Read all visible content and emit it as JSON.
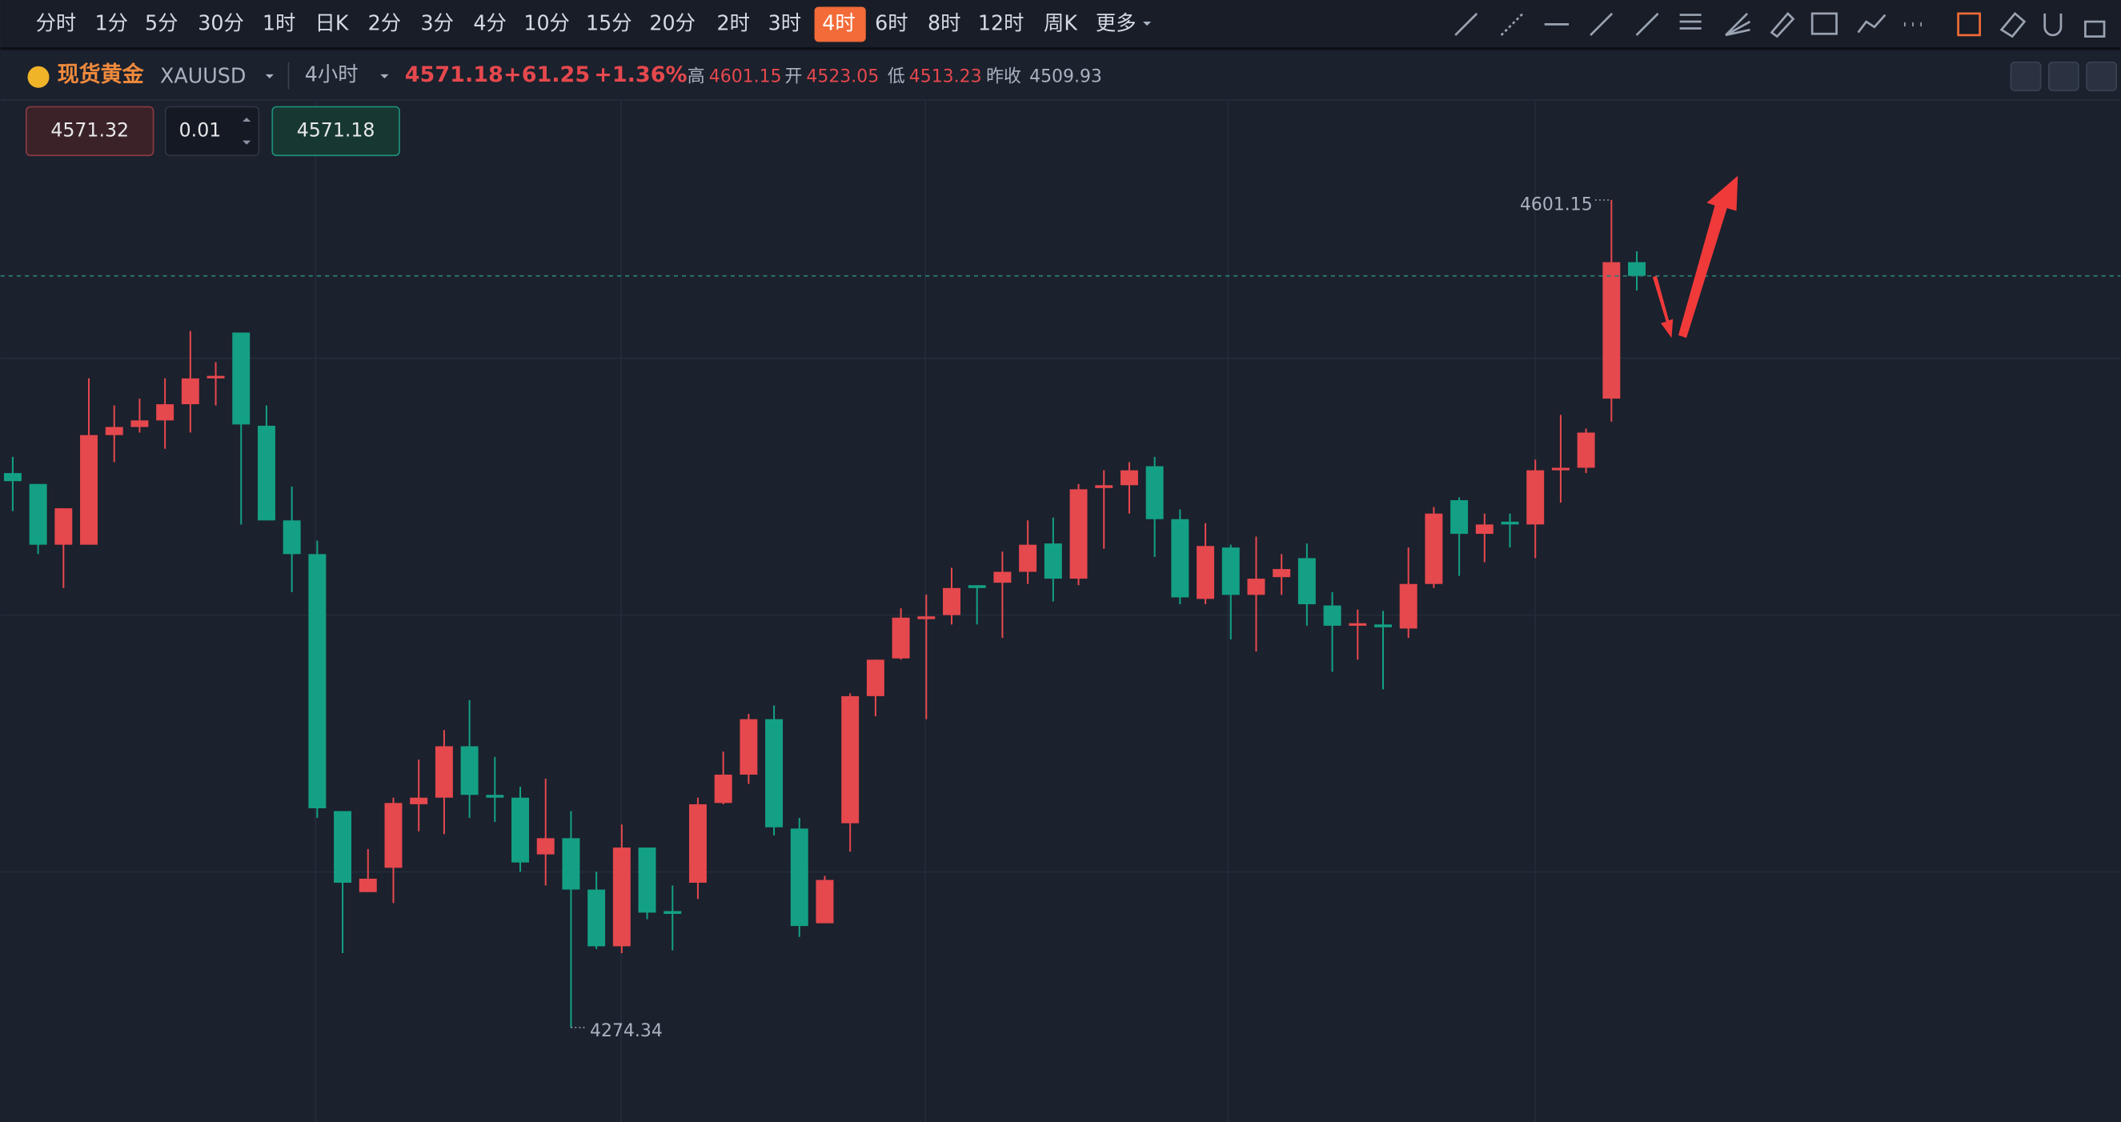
{
  "toolbar": {
    "intervals": [
      "分时",
      "1分",
      "5分",
      "30分",
      "1时",
      "日K",
      "2分",
      "3分",
      "4分",
      "10分",
      "15分",
      "20分",
      "2时",
      "3时",
      "4时",
      "6时",
      "8时",
      "12时",
      "周K",
      "更多"
    ],
    "active_interval": 14
  },
  "symbol": {
    "name": "现货黄金",
    "code": "XAUUSD",
    "period": "4小时",
    "price": "4571.18",
    "change": "+61.25",
    "change_pct": "+1.36%",
    "high_label": "高",
    "high": "4601.15",
    "open_label": "开",
    "open": "4523.05",
    "low_label": "低",
    "low": "4513.23",
    "prev_close_label": "昨收",
    "prev_close": "4509.93"
  },
  "order": {
    "sell": "4571.32",
    "lots": "0.01",
    "buy": "4571.18"
  },
  "chart_data": {
    "type": "candlestick",
    "up_color": "#e5484d",
    "down_color": "#14a085",
    "ylim": [
      4237.0,
      4640.1
    ],
    "last_price_line": true,
    "open": [
      4493.3,
      4489.0,
      4465.0,
      4465.0,
      4508.3,
      4511.5,
      4514.1,
      4520.5,
      4530.7,
      4548.8,
      4512.0,
      4474.6,
      4461.3,
      4359.8,
      4327.8,
      4337.4,
      4362.5,
      4365.1,
      4385.4,
      4366.2,
      4365.1,
      4342.7,
      4349.1,
      4328.8,
      4306.4,
      4345.4,
      4320.3,
      4331.5,
      4363.0,
      4374.2,
      4396.1,
      4352.9,
      4315.5,
      4355.0,
      4405.2,
      4420.1,
      4435.6,
      4437.2,
      4449.0,
      4450.0,
      4454.3,
      4465.5,
      4451.6,
      4487.4,
      4488.5,
      4496.0,
      4475.1,
      4443.6,
      4463.9,
      4445.2,
      4452.2,
      4459.7,
      4441.0,
      4433.0,
      4433.5,
      4431.9,
      4449.5,
      4482.6,
      4469.3,
      4474.1,
      4473.0,
      4494.4,
      4495.4,
      4522.7,
      4576.6
    ],
    "high": [
      4499.7,
      4489.0,
      4479.4,
      4530.7,
      4520.0,
      4522.7,
      4530.7,
      4549.4,
      4537.1,
      4548.8,
      4520.0,
      4488.0,
      4466.6,
      4359.8,
      4344.8,
      4365.1,
      4380.1,
      4391.8,
      4403.6,
      4381.2,
      4369.4,
      4372.6,
      4359.8,
      4335.8,
      4354.5,
      4345.4,
      4330.4,
      4365.1,
      4383.3,
      4398.2,
      4401.5,
      4357.1,
      4334.2,
      4406.3,
      4419.6,
      4439.9,
      4445.2,
      4455.9,
      4449.0,
      4462.3,
      4474.6,
      4475.7,
      4489.0,
      4494.4,
      4497.6,
      4499.7,
      4478.9,
      4473.5,
      4465.0,
      4468.2,
      4461.3,
      4465.5,
      4446.3,
      4439.4,
      4438.8,
      4463.9,
      4479.9,
      4483.7,
      4477.3,
      4477.3,
      4498.6,
      4516.3,
      4510.9,
      4601.15,
      4580.9
    ],
    "low": [
      4478.3,
      4461.3,
      4447.9,
      4465.0,
      4497.6,
      4509.3,
      4502.9,
      4509.3,
      4520.0,
      4473.0,
      4474.6,
      4446.3,
      4357.1,
      4303.7,
      4327.8,
      4323.5,
      4351.8,
      4350.7,
      4357.1,
      4355.5,
      4335.8,
      4330.4,
      4274.34,
      4305.3,
      4303.7,
      4317.1,
      4304.8,
      4325.1,
      4362.5,
      4370.5,
      4350.2,
      4310.1,
      4315.5,
      4343.8,
      4397.2,
      4419.6,
      4396.1,
      4433.5,
      4433.5,
      4428.2,
      4449.5,
      4442.6,
      4449.0,
      4463.4,
      4477.3,
      4460.2,
      4441.5,
      4441.5,
      4427.6,
      4422.8,
      4445.2,
      4433.0,
      4414.8,
      4419.6,
      4407.9,
      4428.2,
      4447.9,
      4452.7,
      4458.1,
      4463.9,
      4459.7,
      4481.6,
      4493.3,
      4513.6,
      4565.4
    ],
    "close": [
      4490.1,
      4465.0,
      4479.4,
      4508.3,
      4511.5,
      4514.1,
      4520.5,
      4530.7,
      4531.7,
      4512.5,
      4474.6,
      4461.3,
      4360.9,
      4331.5,
      4333.1,
      4363.0,
      4365.1,
      4385.4,
      4366.2,
      4365.1,
      4339.5,
      4349.1,
      4328.8,
      4306.4,
      4345.4,
      4319.7,
      4319.2,
      4362.5,
      4374.2,
      4396.1,
      4353.4,
      4314.4,
      4332.6,
      4405.2,
      4419.6,
      4436.2,
      4436.7,
      4447.9,
      4447.9,
      4454.3,
      4465.0,
      4451.6,
      4486.9,
      4488.5,
      4494.4,
      4475.1,
      4444.2,
      4464.5,
      4445.2,
      4451.6,
      4455.4,
      4441.5,
      4433.0,
      4434.0,
      4432.4,
      4449.5,
      4477.3,
      4469.3,
      4473.0,
      4473.0,
      4494.4,
      4495.4,
      4509.3,
      4576.6,
      4571.18
    ]
  }
}
